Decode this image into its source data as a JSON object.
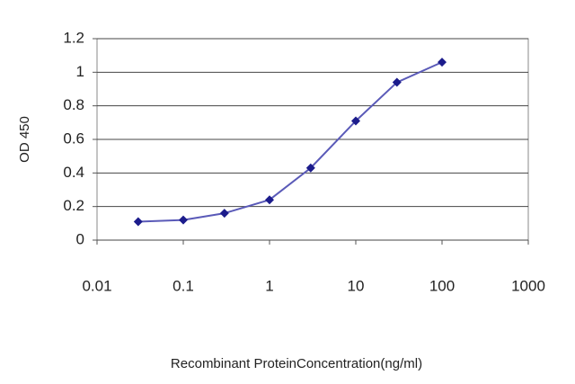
{
  "chart_data": {
    "type": "line",
    "xlabel": "Recombinant ProteinConcentration(ng/ml)",
    "ylabel": "OD 450",
    "x": [
      0.03,
      0.1,
      0.3,
      1,
      3,
      10,
      30,
      100
    ],
    "values": [
      0.11,
      0.12,
      0.16,
      0.24,
      0.43,
      0.71,
      0.94,
      1.06
    ],
    "color": "#5a5ab8",
    "marker_color": "#1c1c8c",
    "xscale": "log",
    "xlim": [
      0.01,
      1000
    ],
    "xticks": [
      0.01,
      0.1,
      1,
      10,
      100,
      1000
    ],
    "ylim": [
      0,
      1.2
    ],
    "yticks": [
      0,
      0.2,
      0.4,
      0.6,
      0.8,
      1,
      1.2
    ],
    "grid": true
  }
}
